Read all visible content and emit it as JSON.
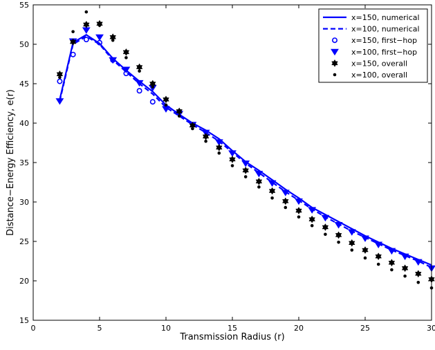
{
  "chart_data": {
    "type": "line",
    "title": "",
    "xlabel": "Transmission Radius (r)",
    "ylabel": "Distance−Energy Efficiency, e(r)",
    "xlim": [
      0,
      30
    ],
    "ylim": [
      15,
      55
    ],
    "xticks": [
      0,
      5,
      10,
      15,
      20,
      25,
      30
    ],
    "yticks": [
      15,
      20,
      25,
      30,
      35,
      40,
      45,
      50,
      55
    ],
    "grid": false,
    "legend_position": "top-right",
    "series": [
      {
        "name": "x=150, numerical",
        "style": "solid-line",
        "color": "#0000ff",
        "x": [
          2,
          3,
          4,
          5,
          6,
          7,
          8,
          9,
          10,
          11,
          12,
          13,
          14,
          15,
          16,
          17,
          18,
          19,
          20,
          21,
          22,
          23,
          24,
          25,
          26,
          27,
          28,
          29,
          30
        ],
        "y": [
          43.0,
          50.2,
          51.2,
          50.1,
          48.2,
          46.7,
          45.3,
          44.0,
          42.3,
          41.1,
          40.0,
          39.1,
          38.0,
          36.5,
          35.1,
          34.0,
          32.8,
          31.6,
          30.5,
          29.3,
          28.4,
          27.5,
          26.6,
          25.7,
          24.9,
          24.1,
          23.4,
          22.7,
          22.0
        ]
      },
      {
        "name": "x=100, numerical",
        "style": "dashed-line",
        "color": "#0000ff",
        "x": [
          2,
          3,
          4,
          5,
          6,
          7,
          8,
          9,
          10,
          11,
          12,
          13,
          14,
          15,
          16,
          17,
          18,
          19,
          20,
          21,
          22,
          23,
          24,
          25,
          26,
          27,
          28,
          29,
          30
        ],
        "y": [
          42.8,
          50.0,
          51.0,
          50.0,
          48.0,
          46.5,
          45.0,
          43.7,
          42.0,
          40.9,
          39.8,
          38.8,
          37.7,
          36.3,
          34.9,
          33.7,
          32.5,
          31.3,
          30.2,
          29.1,
          28.1,
          27.2,
          26.3,
          25.5,
          24.7,
          23.9,
          23.2,
          22.5,
          21.7
        ]
      },
      {
        "name": "x=150, first−hop",
        "style": "open-circle",
        "color": "#0000ff",
        "x": [
          2,
          3,
          4,
          5,
          6,
          7,
          8,
          9
        ],
        "y": [
          45.3,
          48.7,
          50.6,
          50.2,
          48.0,
          46.3,
          44.1,
          42.7
        ]
      },
      {
        "name": "x=100, first−hop",
        "style": "down-triangle",
        "color": "#0000ff",
        "x": [
          2,
          3,
          4,
          5,
          6,
          7,
          8,
          9,
          10,
          11,
          12,
          13,
          14,
          15,
          16,
          17,
          18,
          19,
          20,
          21,
          22,
          23,
          24,
          25,
          26,
          27,
          28,
          29,
          30
        ],
        "y": [
          42.8,
          50.4,
          51.8,
          50.9,
          48.0,
          46.8,
          45.1,
          44.5,
          41.8,
          41.2,
          39.8,
          38.8,
          37.6,
          36.2,
          34.9,
          33.6,
          32.4,
          31.2,
          30.1,
          29.0,
          28.0,
          27.1,
          26.2,
          25.4,
          24.6,
          23.8,
          23.1,
          22.4,
          21.6
        ]
      },
      {
        "name": "x=150, overall",
        "style": "hexagram",
        "color": "#000000",
        "x": [
          2,
          3,
          4,
          5,
          6,
          7,
          8,
          9,
          10,
          11,
          12,
          13,
          14,
          15,
          16,
          17,
          18,
          19,
          20,
          21,
          22,
          23,
          24,
          25,
          26,
          27,
          28,
          29,
          30
        ],
        "y": [
          46.2,
          50.3,
          52.5,
          52.6,
          50.9,
          49.0,
          47.1,
          45.0,
          43.0,
          41.5,
          39.7,
          38.3,
          36.9,
          35.4,
          34.0,
          32.6,
          31.4,
          30.1,
          28.9,
          27.8,
          26.8,
          25.8,
          24.8,
          23.9,
          23.1,
          22.3,
          21.6,
          20.9,
          20.2
        ]
      },
      {
        "name": "x=100, overall",
        "style": "dot",
        "color": "#000000",
        "x": [
          2,
          3,
          4,
          5,
          6,
          7,
          8,
          9,
          10,
          11,
          12,
          13,
          14,
          15,
          16,
          17,
          18,
          19,
          20,
          21,
          22,
          23,
          24,
          25,
          26,
          27,
          28,
          29,
          30
        ],
        "y": [
          45.8,
          51.6,
          54.1,
          52.4,
          50.5,
          48.3,
          46.6,
          44.6,
          42.3,
          40.9,
          39.3,
          37.7,
          36.2,
          34.6,
          33.2,
          31.9,
          30.5,
          29.3,
          28.1,
          27.0,
          25.9,
          24.9,
          23.9,
          22.9,
          22.1,
          21.4,
          20.6,
          19.8,
          19.1
        ]
      }
    ]
  }
}
